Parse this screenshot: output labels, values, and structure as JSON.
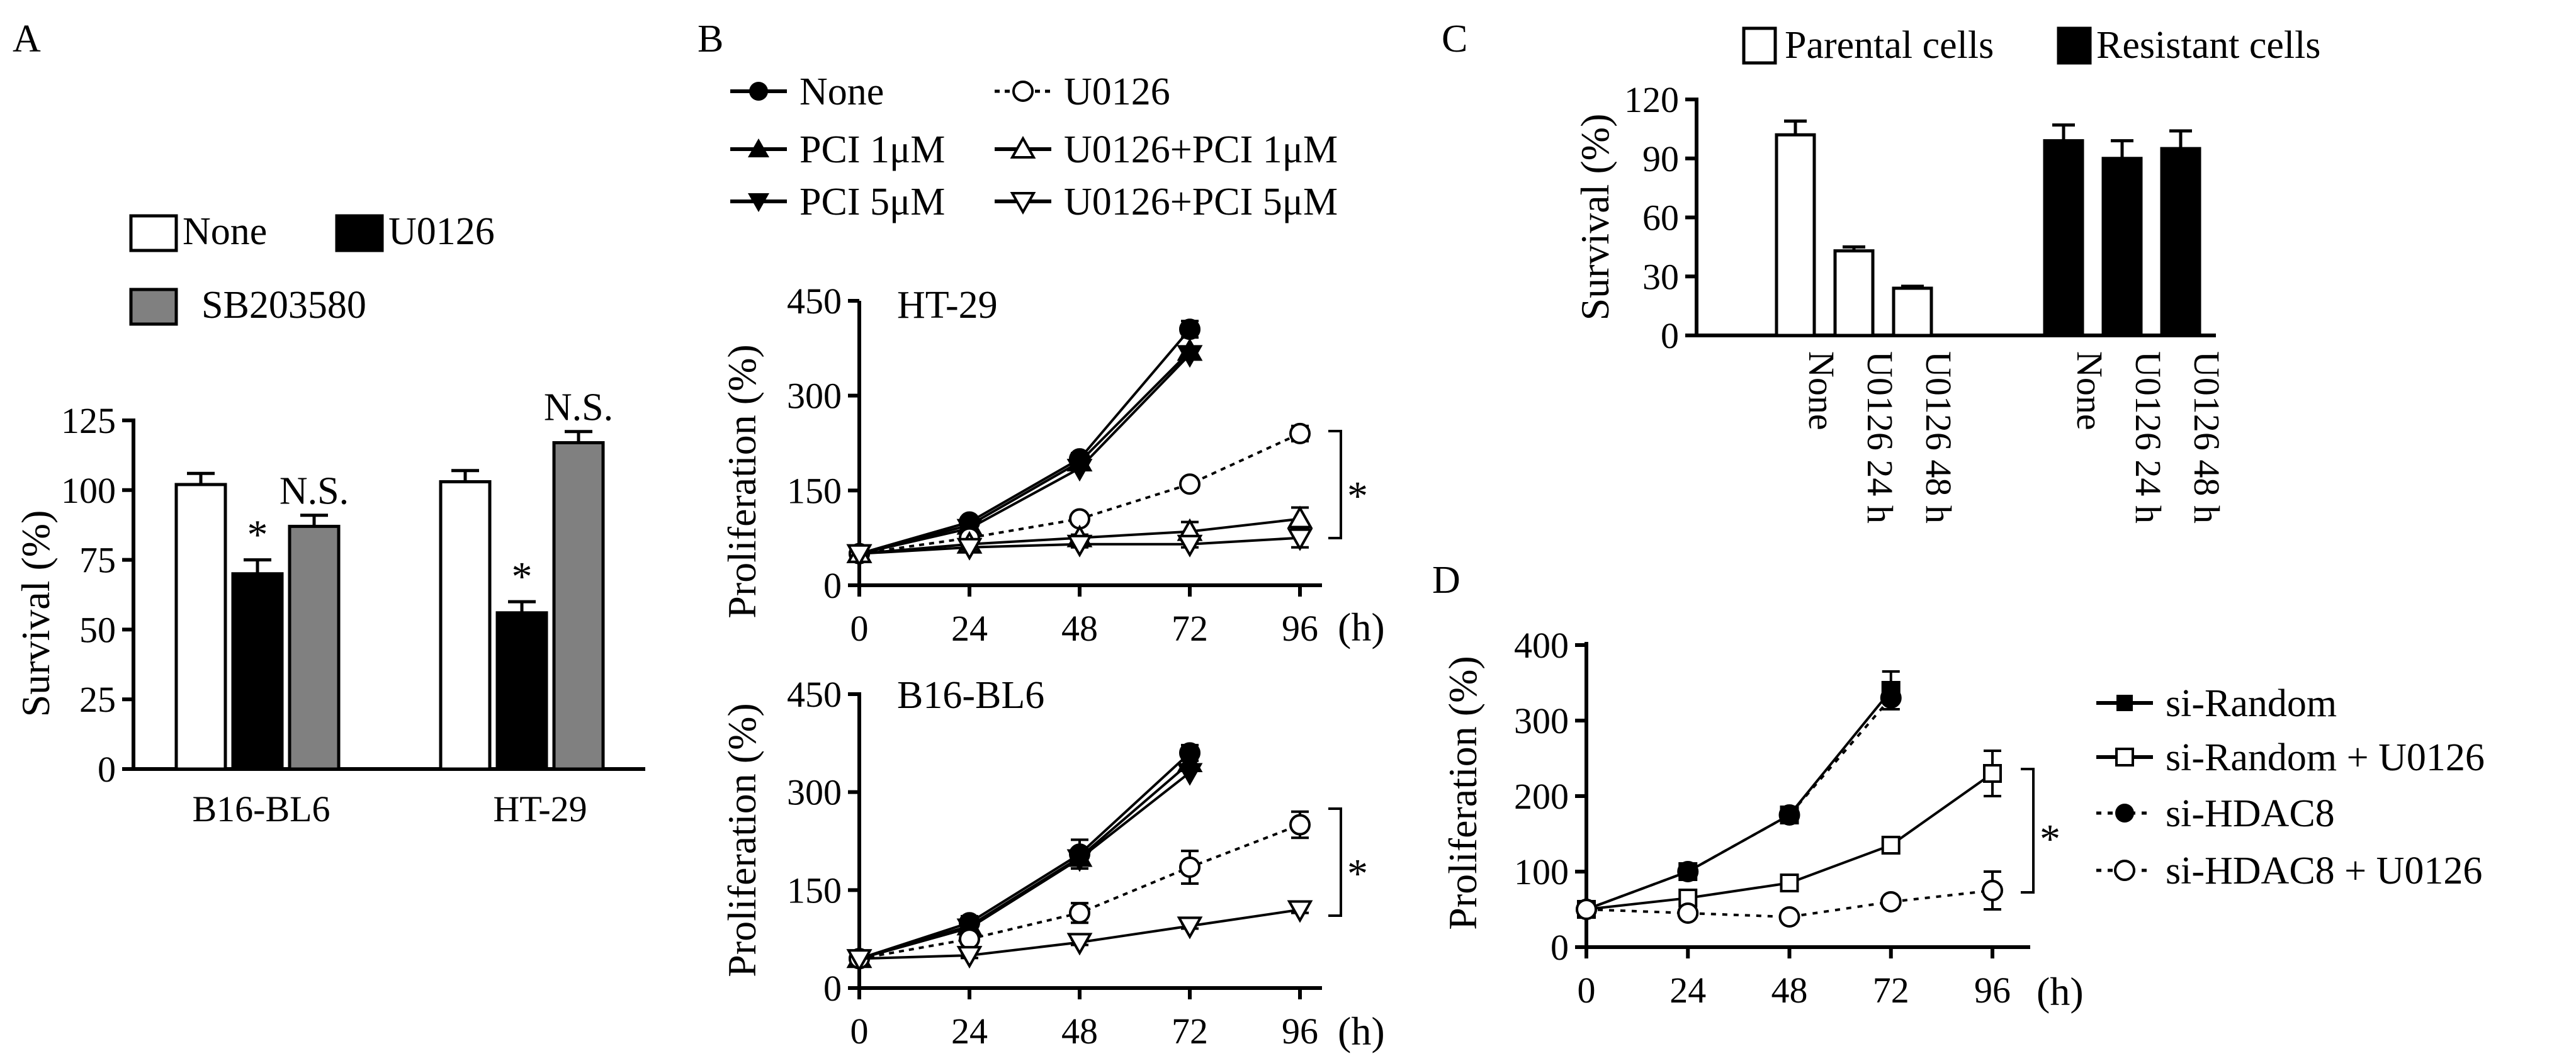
{
  "chart_data": [
    {
      "panel": "A",
      "type": "bar",
      "ylabel": "Survival (%)",
      "ylim": [
        0,
        125
      ],
      "yticks": [
        0,
        25,
        50,
        75,
        100,
        125
      ],
      "categories": [
        "B16-BL6",
        "HT-29"
      ],
      "series": [
        {
          "name": "None",
          "color": "#ffffff",
          "values": [
            102,
            103
          ],
          "errors": [
            4,
            4
          ]
        },
        {
          "name": "U0126",
          "color": "#000000",
          "values": [
            70,
            56
          ],
          "errors": [
            5,
            4
          ]
        },
        {
          "name": "SB203580",
          "color": "#808080",
          "values": [
            87,
            117
          ],
          "errors": [
            4,
            4
          ]
        }
      ],
      "annotations": [
        {
          "category": "B16-BL6",
          "series": "U0126",
          "text": "*"
        },
        {
          "category": "B16-BL6",
          "series": "SB203580",
          "text": "N.S."
        },
        {
          "category": "HT-29",
          "series": "U0126",
          "text": "*"
        },
        {
          "category": "HT-29",
          "series": "SB203580",
          "text": "N.S."
        }
      ]
    },
    {
      "panel": "B",
      "type": "line",
      "subpanels": [
        {
          "title": "HT-29",
          "ylabel": "Proliferation (%)",
          "xlabel_unit": "(h)",
          "ylim": [
            0,
            450
          ],
          "yticks": [
            0,
            150,
            300,
            450
          ],
          "x": [
            0,
            24,
            48,
            72,
            96
          ],
          "significance": "*",
          "series": [
            {
              "name": "None",
              "values": [
                50,
                100,
                200,
                405,
                null
              ],
              "errors": [
                0,
                7,
                9,
                13,
                0
              ]
            },
            {
              "name": "PCI 1μM",
              "values": [
                50,
                95,
                195,
                370,
                null
              ],
              "errors": [
                0,
                0,
                0,
                0,
                0
              ]
            },
            {
              "name": "PCI 5μM",
              "values": [
                50,
                90,
                185,
                365,
                null
              ],
              "errors": [
                0,
                0,
                0,
                0,
                0
              ]
            },
            {
              "name": "U0126",
              "values": [
                50,
                75,
                105,
                160,
                240
              ],
              "errors": [
                0,
                5,
                6,
                6,
                12
              ]
            },
            {
              "name": "U0126+PCI 1μM",
              "values": [
                50,
                65,
                75,
                85,
                105
              ],
              "errors": [
                0,
                5,
                5,
                15,
                18
              ]
            },
            {
              "name": "U0126+PCI 5μM",
              "values": [
                50,
                60,
                65,
                65,
                75
              ],
              "errors": [
                0,
                4,
                5,
                5,
                15
              ]
            }
          ]
        },
        {
          "title": "B16-BL6",
          "ylabel": "Proliferation (%)",
          "xlabel_unit": "(h)",
          "ylim": [
            0,
            450
          ],
          "yticks": [
            0,
            150,
            300,
            450
          ],
          "x": [
            0,
            24,
            48,
            72,
            96
          ],
          "significance": "*",
          "series": [
            {
              "name": "None",
              "values": [
                45,
                100,
                205,
                360,
                null
              ],
              "errors": [
                0,
                10,
                22,
                12,
                0
              ]
            },
            {
              "name": "PCI 1μM",
              "values": [
                45,
                95,
                200,
                345,
                null
              ],
              "errors": [
                0,
                0,
                0,
                0,
                0
              ]
            },
            {
              "name": "PCI 5μM",
              "values": [
                45,
                92,
                198,
                330,
                null
              ],
              "errors": [
                0,
                0,
                0,
                0,
                0
              ]
            },
            {
              "name": "U0126",
              "values": [
                45,
                75,
                115,
                185,
                250
              ],
              "errors": [
                0,
                8,
                15,
                25,
                20
              ]
            },
            {
              "name": "U0126+PCI 5μM",
              "values": [
                45,
                50,
                70,
                95,
                120
              ],
              "errors": [
                0,
                4,
                4,
                4,
                5
              ]
            }
          ]
        }
      ],
      "legend": [
        "None",
        "U0126",
        "PCI 1μM",
        "U0126+PCI 1μM",
        "PCI 5μM",
        "U0126+PCI 5μM"
      ]
    },
    {
      "panel": "C",
      "type": "bar",
      "ylabel": "Survival (%)",
      "ylim": [
        0,
        120
      ],
      "yticks": [
        0,
        30,
        60,
        90,
        120
      ],
      "legend": [
        "Parental cells",
        "Resistant cells"
      ],
      "bars": [
        {
          "group": "Parental cells",
          "label": "None",
          "value": 102,
          "error": 7,
          "color": "#ffffff"
        },
        {
          "group": "Parental cells",
          "label": "U0126 24 h",
          "value": 43,
          "error": 2,
          "color": "#ffffff"
        },
        {
          "group": "Parental cells",
          "label": "U0126 48 h",
          "value": 24,
          "error": 1,
          "color": "#ffffff"
        },
        {
          "group": "Resistant cells",
          "label": "None",
          "value": 99,
          "error": 8,
          "color": "#000000"
        },
        {
          "group": "Resistant cells",
          "label": "U0126 24 h",
          "value": 90,
          "error": 9,
          "color": "#000000"
        },
        {
          "group": "Resistant cells",
          "label": "U0126 48 h",
          "value": 95,
          "error": 9,
          "color": "#000000"
        }
      ]
    },
    {
      "panel": "D",
      "type": "line",
      "ylabel": "Proliferation (%)",
      "xlabel_unit": "(h)",
      "ylim": [
        0,
        400
      ],
      "yticks": [
        0,
        100,
        200,
        300,
        400
      ],
      "x": [
        0,
        24,
        48,
        72,
        96
      ],
      "significance": "*",
      "series": [
        {
          "name": "si-Random",
          "values": [
            50,
            100,
            175,
            340,
            null
          ],
          "errors": [
            0,
            5,
            6,
            25,
            0
          ]
        },
        {
          "name": "si-Random + U0126",
          "values": [
            50,
            65,
            85,
            135,
            230
          ],
          "errors": [
            0,
            5,
            5,
            8,
            30
          ]
        },
        {
          "name": "si-HDAC8",
          "values": [
            50,
            100,
            175,
            330,
            null
          ],
          "errors": [
            0,
            5,
            6,
            15,
            0
          ]
        },
        {
          "name": "si-HDAC8 + U0126",
          "values": [
            50,
            45,
            40,
            60,
            75
          ],
          "errors": [
            0,
            5,
            5,
            5,
            25
          ]
        }
      ]
    }
  ],
  "panel_labels": [
    "A",
    "B",
    "C",
    "D"
  ]
}
